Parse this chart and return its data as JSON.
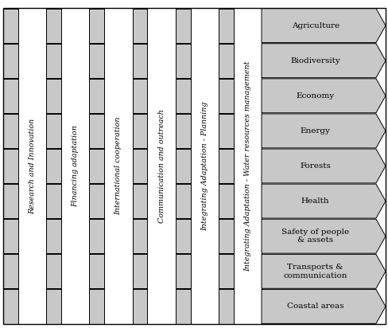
{
  "thematic_areas": [
    "Research and Innovation",
    "Financing adaptation",
    "International cooperation",
    "Communication and outreach",
    "Integrating Adaptation - Planning",
    "Integrating Adaptation - Water resources management"
  ],
  "priority_sectors": [
    "Agriculture",
    "Biodiversity",
    "Economy",
    "Energy",
    "Forests",
    "Health",
    "Safety of people\n& assets",
    "Transports &\ncommunication",
    "Coastal areas"
  ],
  "cell_color": "#c8c8c8",
  "cell_edge_color": "#000000",
  "bg_color": "#ffffff",
  "text_color": "#000000",
  "fig_width": 4.89,
  "fig_height": 4.17,
  "dpi": 100
}
